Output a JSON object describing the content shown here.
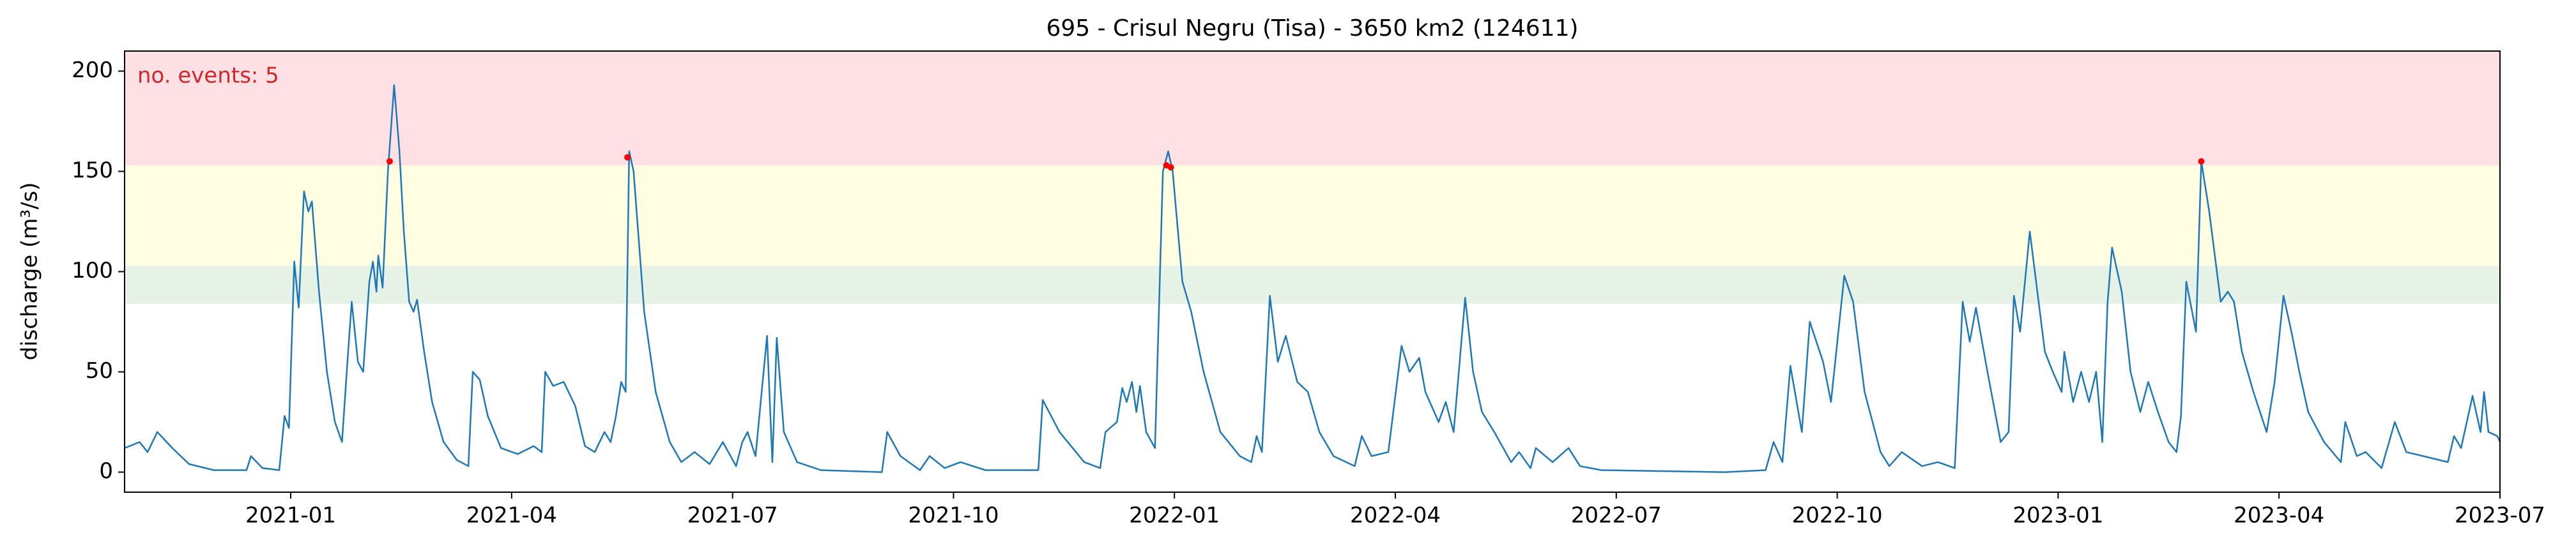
{
  "chart_data": {
    "type": "line",
    "title": "695 - Crisul Negru (Tisa) - 3650 km2 (124611)",
    "y_label": "discharge (m³/s)",
    "annotation": "no. events: 5",
    "annotation_color": "#d62728",
    "xlim": [
      2020.812,
      2023.5
    ],
    "ylim": [
      -10,
      210
    ],
    "xticks": [
      {
        "value": 2021.0,
        "label": "2021-01"
      },
      {
        "value": 2021.25,
        "label": "2021-04"
      },
      {
        "value": 2021.5,
        "label": "2021-07"
      },
      {
        "value": 2021.75,
        "label": "2021-10"
      },
      {
        "value": 2022.0,
        "label": "2022-01"
      },
      {
        "value": 2022.25,
        "label": "2022-04"
      },
      {
        "value": 2022.5,
        "label": "2022-07"
      },
      {
        "value": 2022.75,
        "label": "2022-10"
      },
      {
        "value": 2023.0,
        "label": "2023-01"
      },
      {
        "value": 2023.25,
        "label": "2023-04"
      },
      {
        "value": 2023.5,
        "label": "2023-07"
      }
    ],
    "yticks": [
      0,
      50,
      100,
      150,
      200
    ],
    "grid": false,
    "bands": [
      {
        "from": 84,
        "to": 103,
        "color": "#e5f2e5"
      },
      {
        "from": 103,
        "to": 153,
        "color": "#fffde2"
      },
      {
        "from": 153,
        "to": 210,
        "color": "#ffe1e5"
      }
    ],
    "line": {
      "color": "#1f77b4",
      "x": [
        2020.812,
        2020.829,
        2020.838,
        2020.849,
        2020.866,
        2020.885,
        2020.913,
        2020.95,
        2020.955,
        2020.968,
        2020.987,
        2020.993,
        2020.998,
        2021.004,
        2021.009,
        2021.015,
        2021.02,
        2021.024,
        2021.032,
        2021.041,
        2021.05,
        2021.058,
        2021.065,
        2021.069,
        2021.076,
        2021.082,
        2021.089,
        2021.093,
        2021.097,
        2021.099,
        2021.104,
        2021.11,
        2021.117,
        2021.123,
        2021.128,
        2021.134,
        2021.139,
        2021.143,
        2021.151,
        2021.16,
        2021.173,
        2021.188,
        2021.201,
        2021.206,
        2021.214,
        2021.223,
        2021.238,
        2021.257,
        2021.275,
        2021.284,
        2021.288,
        2021.297,
        2021.309,
        2021.322,
        2021.333,
        2021.344,
        2021.355,
        2021.362,
        2021.368,
        2021.374,
        2021.379,
        2021.383,
        2021.388,
        2021.4,
        2021.413,
        2021.429,
        2021.442,
        2021.457,
        2021.474,
        2021.489,
        2021.504,
        2021.511,
        2021.517,
        2021.526,
        2021.539,
        2021.545,
        2021.55,
        2021.558,
        2021.573,
        2021.6,
        2021.669,
        2021.675,
        2021.69,
        2021.712,
        2021.723,
        2021.74,
        2021.758,
        2021.786,
        2021.846,
        2021.851,
        2021.87,
        2021.898,
        2021.916,
        2021.922,
        2021.935,
        2021.941,
        2021.946,
        2021.952,
        2021.957,
        2021.961,
        2021.968,
        2021.978,
        2021.987,
        2021.993,
        2021.998,
        2022.009,
        2022.019,
        2022.033,
        2022.052,
        2022.074,
        2022.087,
        2022.093,
        2022.099,
        2022.108,
        2022.117,
        2022.126,
        2022.139,
        2022.151,
        2022.164,
        2022.18,
        2022.204,
        2022.212,
        2022.223,
        2022.242,
        2022.257,
        2022.266,
        2022.277,
        2022.284,
        2022.299,
        2022.307,
        2022.316,
        2022.329,
        2022.338,
        2022.348,
        2022.362,
        2022.381,
        2022.39,
        2022.403,
        2022.409,
        2022.428,
        2022.446,
        2022.459,
        2022.483,
        2022.623,
        2022.669,
        2022.678,
        2022.688,
        2022.697,
        2022.71,
        2022.719,
        2022.734,
        2022.743,
        2022.758,
        2022.768,
        2022.781,
        2022.799,
        2022.809,
        2022.823,
        2022.846,
        2022.864,
        2022.883,
        2022.892,
        2022.9,
        2022.907,
        2022.92,
        2022.935,
        2022.944,
        2022.95,
        2022.957,
        2022.968,
        2022.985,
        2022.994,
        2023.004,
        2023.007,
        2023.017,
        2023.026,
        2023.035,
        2023.043,
        2023.05,
        2023.056,
        2023.061,
        2023.072,
        2023.082,
        2023.093,
        2023.102,
        2023.113,
        2023.125,
        2023.134,
        2023.139,
        2023.145,
        2023.156,
        2023.162,
        2023.171,
        2023.184,
        2023.192,
        2023.199,
        2023.208,
        2023.221,
        2023.236,
        2023.245,
        2023.255,
        2023.264,
        2023.273,
        2023.283,
        2023.301,
        2023.32,
        2023.325,
        2023.338,
        2023.348,
        2023.366,
        2023.381,
        2023.394,
        2023.413,
        2023.441,
        2023.448,
        2023.456,
        2023.469,
        2023.478,
        2023.482,
        2023.487,
        2023.497,
        2023.5
      ],
      "values": [
        12,
        15,
        10,
        20,
        12,
        4,
        1,
        1,
        8,
        2,
        1,
        28,
        22,
        105,
        82,
        140,
        130,
        135,
        90,
        50,
        25,
        15,
        60,
        85,
        55,
        50,
        95,
        105,
        90,
        108,
        92,
        150,
        193,
        160,
        120,
        85,
        80,
        86,
        60,
        35,
        15,
        6,
        3,
        50,
        46,
        28,
        12,
        9,
        13,
        10,
        50,
        43,
        45,
        33,
        13,
        10,
        20,
        15,
        28,
        45,
        40,
        160,
        150,
        80,
        40,
        15,
        5,
        10,
        4,
        15,
        3,
        15,
        20,
        8,
        68,
        5,
        67,
        20,
        5,
        1,
        0,
        20,
        8,
        1,
        8,
        2,
        5,
        1,
        1,
        36,
        20,
        5,
        2,
        20,
        25,
        42,
        35,
        45,
        30,
        43,
        20,
        12,
        150,
        160,
        150,
        95,
        80,
        50,
        20,
        8,
        5,
        18,
        10,
        88,
        55,
        68,
        45,
        40,
        20,
        8,
        3,
        18,
        8,
        10,
        63,
        50,
        57,
        40,
        25,
        35,
        20,
        87,
        50,
        30,
        20,
        5,
        10,
        2,
        12,
        5,
        12,
        3,
        1,
        0,
        1,
        15,
        5,
        53,
        20,
        75,
        55,
        35,
        98,
        85,
        40,
        10,
        3,
        10,
        3,
        5,
        2,
        85,
        65,
        82,
        50,
        15,
        20,
        88,
        70,
        120,
        60,
        50,
        40,
        60,
        35,
        50,
        35,
        50,
        15,
        85,
        112,
        90,
        50,
        30,
        45,
        30,
        15,
        10,
        28,
        95,
        70,
        155,
        130,
        85,
        90,
        85,
        60,
        40,
        20,
        45,
        88,
        70,
        50,
        30,
        15,
        5,
        25,
        8,
        10,
        2,
        25,
        10,
        8,
        5,
        18,
        12,
        38,
        20,
        40,
        20,
        18,
        15
      ]
    },
    "events": {
      "color": "#ff0000",
      "x": [
        2021.112,
        2021.381,
        2021.991,
        2021.996,
        2023.162
      ],
      "values": [
        155,
        157,
        153,
        152,
        155
      ]
    }
  }
}
